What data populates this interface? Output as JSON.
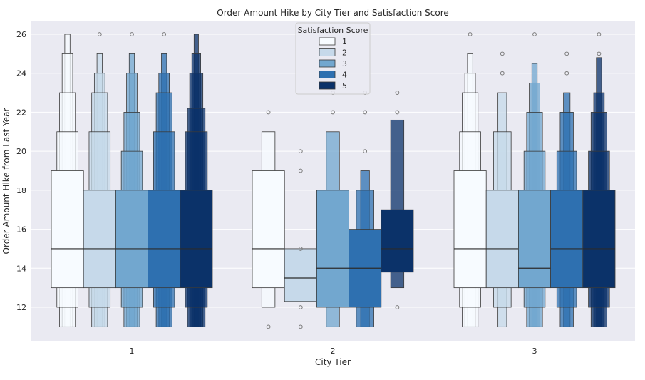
{
  "chart_data": {
    "type": "boxen",
    "title": "Order Amount Hike by City Tier and Satisfaction Score",
    "xlabel": "City Tier",
    "ylabel": "Order Amount Hike from Last Year",
    "categories": [
      "1",
      "2",
      "3"
    ],
    "ylim": [
      10.3,
      27.0
    ],
    "yticks": [
      12,
      14,
      16,
      18,
      20,
      22,
      24,
      26
    ],
    "grid": true,
    "legend": {
      "title": "Satisfaction Score",
      "placement": "top-center",
      "entries": [
        "1",
        "2",
        "3",
        "4",
        "5"
      ]
    },
    "colors": [
      "#f7fbff",
      "#c6d9ea",
      "#72a7cf",
      "#2e70b0",
      "#0b3269"
    ],
    "background": "#eaeaf2",
    "series": [
      {
        "name": "1",
        "groups": [
          {
            "median": 15,
            "boxes": [
              [
                13,
                19
              ],
              [
                12,
                21
              ],
              [
                11,
                23
              ],
              [
                11,
                25
              ],
              [
                11,
                26
              ]
            ],
            "outliers": []
          },
          {
            "median": 15,
            "boxes": [
              [
                13,
                19
              ],
              [
                12,
                21
              ]
            ],
            "outliers": [
              11,
              22
            ]
          },
          {
            "median": 15,
            "boxes": [
              [
                13,
                19
              ],
              [
                12,
                21
              ],
              [
                11,
                23
              ],
              [
                11,
                24
              ],
              [
                11,
                25
              ]
            ],
            "outliers": [
              26
            ]
          }
        ]
      },
      {
        "name": "2",
        "groups": [
          {
            "median": 15,
            "boxes": [
              [
                13,
                18
              ],
              [
                12,
                21
              ],
              [
                11,
                23
              ],
              [
                11,
                24
              ],
              [
                11,
                25
              ]
            ],
            "outliers": [
              26
            ]
          },
          {
            "median": 13.5,
            "boxes": [
              [
                12.3,
                15
              ]
            ],
            "outliers": [
              11,
              12,
              15,
              19,
              20
            ]
          },
          {
            "median": 15,
            "boxes": [
              [
                13,
                18
              ],
              [
                12,
                21
              ],
              [
                11,
                23
              ]
            ],
            "outliers": [
              24,
              25
            ]
          }
        ]
      },
      {
        "name": "3",
        "groups": [
          {
            "median": 15,
            "boxes": [
              [
                13,
                18
              ],
              [
                12,
                20
              ],
              [
                11,
                22
              ],
              [
                11,
                24
              ],
              [
                11,
                25
              ]
            ],
            "outliers": [
              26
            ]
          },
          {
            "median": 14,
            "boxes": [
              [
                12,
                18
              ],
              [
                11,
                21
              ]
            ],
            "outliers": [
              22,
              23
            ]
          },
          {
            "median": 14,
            "boxes": [
              [
                13,
                18
              ],
              [
                12,
                20
              ],
              [
                11,
                22
              ],
              [
                11,
                23.5
              ],
              [
                11,
                24.5
              ]
            ],
            "outliers": [
              26
            ]
          }
        ]
      },
      {
        "name": "4",
        "groups": [
          {
            "median": 15,
            "boxes": [
              [
                13,
                18
              ],
              [
                12,
                21
              ],
              [
                11,
                23
              ],
              [
                11,
                24
              ],
              [
                11,
                25
              ]
            ],
            "outliers": [
              26
            ]
          },
          {
            "median": 14,
            "boxes": [
              [
                12,
                16
              ],
              [
                11,
                18
              ],
              [
                11,
                19
              ]
            ],
            "outliers": [
              20,
              22,
              23
            ]
          },
          {
            "median": 15,
            "boxes": [
              [
                13,
                18
              ],
              [
                12,
                20
              ],
              [
                11,
                22
              ],
              [
                11,
                23
              ]
            ],
            "outliers": [
              24,
              25
            ]
          }
        ]
      },
      {
        "name": "5",
        "groups": [
          {
            "median": 15,
            "boxes": [
              [
                13,
                18
              ],
              [
                12,
                21
              ],
              [
                11,
                22.2
              ],
              [
                11,
                24
              ],
              [
                11,
                25
              ],
              [
                11,
                26
              ]
            ],
            "outliers": []
          },
          {
            "median": 15,
            "boxes": [
              [
                13.8,
                17
              ],
              [
                13,
                21.6
              ]
            ],
            "outliers": [
              12,
              22,
              23
            ]
          },
          {
            "median": 15,
            "boxes": [
              [
                13,
                18
              ],
              [
                12,
                20
              ],
              [
                11,
                22
              ],
              [
                11,
                23
              ],
              [
                11,
                24.8
              ]
            ],
            "outliers": [
              25,
              26
            ]
          }
        ]
      }
    ]
  }
}
